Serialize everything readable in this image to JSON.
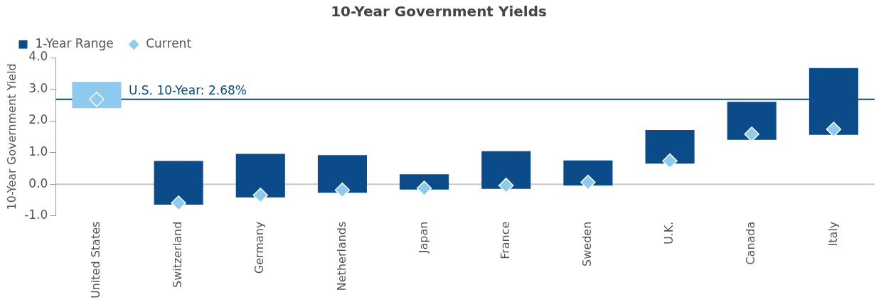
{
  "chart_data": {
    "type": "bar",
    "title": "10-Year Government Yields",
    "ylabel": "10-Year Government Yield",
    "categories": [
      "United States",
      "Switzerland",
      "Germany",
      "Netherlands",
      "Japan",
      "France",
      "Sweden",
      "U.K.",
      "Canada",
      "Italy"
    ],
    "series": [
      {
        "name": "1-Year Range",
        "color": "#0c4b89",
        "colors": [
          "#8ec9ee",
          "#0c4b89",
          "#0c4b89",
          "#0c4b89",
          "#0c4b89",
          "#0c4b89",
          "#0c4b89",
          "#0c4b89",
          "#0c4b89",
          "#0c4b89"
        ],
        "base": [
          2.4,
          -0.65,
          -0.42,
          -0.27,
          -0.17,
          -0.15,
          -0.04,
          0.65,
          1.4,
          1.56
        ],
        "values": [
          0.83,
          1.38,
          1.38,
          1.19,
          0.48,
          1.19,
          0.79,
          1.06,
          1.2,
          2.11
        ]
      },
      {
        "name": "Current",
        "type": "scatter",
        "marker": "diamond",
        "color": "#8ec9ee",
        "x": [
          "United States",
          "Switzerland",
          "Germany",
          "Netherlands",
          "Japan",
          "France",
          "Sweden",
          "U.K.",
          "Canada",
          "Italy"
        ],
        "values": [
          2.68,
          -0.6,
          -0.35,
          -0.19,
          -0.13,
          -0.04,
          0.06,
          0.73,
          1.58,
          1.73
        ]
      }
    ],
    "ylim": [
      -1,
      4
    ],
    "yticks": [
      {
        "value": -1,
        "label": "-1.0"
      },
      {
        "value": 0,
        "label": "0.0"
      },
      {
        "value": 1,
        "label": "1.0"
      },
      {
        "value": 2,
        "label": "2.0"
      },
      {
        "value": 3,
        "label": "3.0"
      },
      {
        "value": 4,
        "label": "4.0"
      }
    ],
    "ref_lines": [
      {
        "axis": "y",
        "value": 2.68,
        "label": "U.S. 10-Year: 2.68%",
        "color": "#0c4b89"
      },
      {
        "axis": "y",
        "value": 0,
        "color": "#c8c8c8"
      }
    ],
    "grid": false,
    "legend": "top left"
  }
}
